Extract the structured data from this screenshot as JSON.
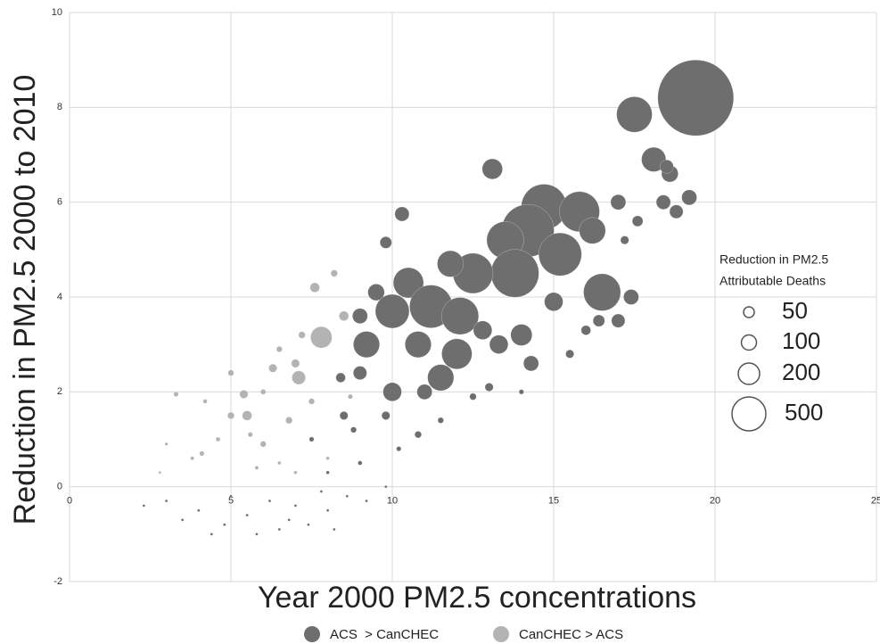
{
  "chart_data": {
    "type": "scatter",
    "x_label": "Year 2000 PM2.5 concentrations",
    "y_label": "Reduction in PM2.5 2000 to 2010",
    "xlim": [
      0,
      25
    ],
    "xticks": [
      0,
      5,
      10,
      15,
      20,
      25
    ],
    "ylim": [
      -2,
      10
    ],
    "yticks": [
      -2,
      0,
      2,
      4,
      6,
      8,
      10
    ],
    "grid": true,
    "size_legend": {
      "title": [
        "Reduction in PM2.5",
        "Attributable Deaths"
      ],
      "values": [
        50,
        100,
        200,
        500
      ]
    },
    "series": [
      {
        "name": "ACS  > CanCHEC",
        "color": "#6e6e6e",
        "x": [
          19.4,
          17.5,
          18.1,
          18.6,
          18.5,
          13.1,
          10.3,
          9.8,
          14.7,
          14.2,
          15.8,
          13.5,
          15.2,
          16.5,
          13.8,
          12.5,
          11.8,
          10.5,
          10.0,
          11.2,
          12.1,
          9.2,
          10.8,
          12.0,
          11.5,
          10.0,
          9.5,
          9.0,
          16.2,
          17.0,
          17.4,
          17.0,
          18.4,
          19.2,
          18.8,
          17.6,
          16.4,
          15.0,
          14.0,
          13.3,
          14.3,
          12.8,
          11.0,
          9.0,
          8.4,
          8.5,
          9.8,
          10.8,
          13.0,
          15.5,
          17.2,
          12.5,
          8.8,
          10.2,
          9.0,
          11.5,
          14.0,
          7.5,
          8.0,
          16.0,
          3.0,
          4.0,
          4.8,
          5.5,
          6.2,
          6.8,
          7.4,
          8.0,
          8.6,
          9.2,
          5.0,
          3.5,
          6.5,
          7.8,
          2.3,
          4.4,
          9.8,
          8.2,
          5.8,
          7.0
        ],
        "values": [
          8.2,
          7.85,
          6.9,
          6.6,
          6.75,
          6.7,
          5.75,
          5.15,
          5.9,
          5.4,
          5.8,
          5.2,
          4.9,
          4.1,
          4.5,
          4.5,
          4.7,
          4.3,
          3.7,
          3.8,
          3.6,
          3.0,
          3.0,
          2.8,
          2.3,
          2.0,
          4.1,
          3.6,
          5.4,
          6.0,
          4.0,
          3.5,
          6.0,
          6.1,
          5.8,
          5.6,
          3.5,
          3.9,
          3.2,
          3.0,
          2.6,
          3.3,
          2.0,
          2.4,
          2.3,
          1.5,
          1.5,
          1.1,
          2.1,
          2.8,
          5.2,
          1.9,
          1.2,
          0.8,
          0.5,
          1.4,
          2.0,
          1.0,
          0.3,
          3.3,
          -0.3,
          -0.5,
          -0.8,
          -0.6,
          -0.3,
          -0.7,
          -0.8,
          -0.5,
          -0.2,
          -0.3,
          -0.2,
          -0.7,
          -0.9,
          -0.1,
          -0.4,
          -1.0,
          0.0,
          -0.9,
          -1.0,
          -0.4
        ],
        "sizes": [
          2500,
          550,
          260,
          120,
          80,
          180,
          90,
          60,
          900,
          1200,
          700,
          600,
          800,
          600,
          1000,
          700,
          300,
          400,
          500,
          800,
          600,
          300,
          300,
          400,
          300,
          150,
          120,
          100,
          300,
          100,
          100,
          80,
          90,
          100,
          80,
          50,
          60,
          150,
          200,
          150,
          100,
          150,
          100,
          80,
          40,
          30,
          30,
          20,
          30,
          30,
          30,
          20,
          15,
          10,
          8,
          15,
          10,
          10,
          5,
          40,
          3,
          3,
          3,
          3,
          3,
          3,
          3,
          3,
          3,
          3,
          3,
          3,
          3,
          3,
          3,
          3,
          3,
          3,
          3,
          3
        ]
      },
      {
        "name": "CanCHEC > ACS",
        "color": "#b3b3b3",
        "x": [
          7.8,
          7.1,
          7.6,
          8.2,
          8.5,
          6.3,
          5.4,
          5.5,
          5.0,
          5.0,
          3.3,
          4.1,
          6.0,
          6.8,
          7.0,
          6.5,
          7.2,
          4.6,
          3.8,
          5.8,
          6.5,
          7.0,
          8.0,
          4.2,
          5.6,
          6.0,
          3.0,
          2.8,
          7.5,
          8.7
        ],
        "values": [
          3.15,
          2.3,
          4.2,
          4.5,
          3.6,
          2.5,
          1.95,
          1.5,
          1.5,
          2.4,
          1.95,
          0.7,
          0.9,
          1.4,
          2.6,
          2.9,
          3.2,
          1.0,
          0.6,
          0.4,
          0.5,
          0.3,
          0.6,
          1.8,
          1.1,
          2.0,
          0.9,
          0.3,
          1.8,
          1.9
        ],
        "sizes": [
          200,
          80,
          40,
          20,
          40,
          30,
          30,
          40,
          20,
          15,
          10,
          10,
          15,
          20,
          30,
          15,
          20,
          8,
          6,
          6,
          5,
          5,
          5,
          8,
          10,
          12,
          4,
          3,
          15,
          10
        ]
      }
    ]
  }
}
